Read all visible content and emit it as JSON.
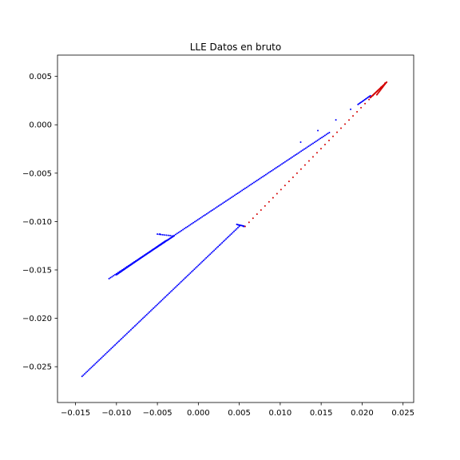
{
  "chart_data": {
    "type": "scatter",
    "title": "LLE Datos en bruto",
    "xlabel": "",
    "ylabel": "",
    "xlim": [
      -0.0172,
      0.0263
    ],
    "ylim": [
      -0.0287,
      0.0072
    ],
    "grid": false,
    "legend": "none",
    "x_ticks": [
      {
        "value": -0.015,
        "label": "−0.015"
      },
      {
        "value": -0.01,
        "label": "−0.010"
      },
      {
        "value": -0.005,
        "label": "−0.005"
      },
      {
        "value": 0.0,
        "label": "0.000"
      },
      {
        "value": 0.005,
        "label": "0.005"
      },
      {
        "value": 0.01,
        "label": "0.010"
      },
      {
        "value": 0.015,
        "label": "0.015"
      },
      {
        "value": 0.02,
        "label": "0.020"
      },
      {
        "value": 0.025,
        "label": "0.025"
      }
    ],
    "y_ticks": [
      {
        "value": 0.005,
        "label": "0.005"
      },
      {
        "value": 0.0,
        "label": "0.000"
      },
      {
        "value": -0.005,
        "label": "−0.005"
      },
      {
        "value": -0.01,
        "label": "−0.010"
      },
      {
        "value": -0.015,
        "label": "−0.015"
      },
      {
        "value": -0.02,
        "label": "−0.020"
      },
      {
        "value": -0.025,
        "label": "−0.025"
      }
    ],
    "series": [
      {
        "color": "#0000ff",
        "segments": [
          {
            "from": [
              -0.0109,
              -0.0159
            ],
            "to": [
              0.016,
              -0.0008
            ],
            "n": 150
          },
          {
            "from": [
              -0.01,
              -0.0155
            ],
            "to": [
              -0.004,
              -0.012
            ],
            "n": 60
          },
          {
            "from": [
              -0.0085,
              -0.0146
            ],
            "to": [
              -0.003,
              -0.0115
            ],
            "n": 45
          },
          {
            "from": [
              -0.005,
              -0.0113
            ],
            "to": [
              -0.003,
              -0.0115
            ],
            "n": 10
          },
          {
            "from": [
              -0.0142,
              -0.026
            ],
            "to": [
              0.005,
              -0.0105
            ],
            "n": 120
          },
          {
            "from": [
              0.0047,
              -0.0103
            ],
            "to": [
              0.0057,
              -0.0105
            ],
            "n": 10
          },
          {
            "from": [
              0.0195,
              0.0021
            ],
            "to": [
              0.021,
              0.003
            ],
            "n": 12
          }
        ],
        "points": [
          [
            0.0186,
            0.0016
          ],
          [
            0.0146,
            -0.0006
          ],
          [
            0.0125,
            -0.0018
          ],
          [
            0.0168,
            0.0005
          ],
          [
            -0.0047,
            -0.0113
          ],
          [
            0.0055,
            -0.0105
          ]
        ]
      },
      {
        "color": "#d40000",
        "segments": [
          {
            "from": [
              0.0057,
              -0.0105
            ],
            "to": [
              0.0228,
              0.0043
            ],
            "n": 36
          },
          {
            "from": [
              0.021,
              0.0028
            ],
            "to": [
              0.023,
              0.0044
            ],
            "n": 45
          },
          {
            "from": [
              0.0218,
              0.0031
            ],
            "to": [
              0.0228,
              0.0042
            ],
            "n": 12
          }
        ],
        "points": []
      }
    ]
  }
}
